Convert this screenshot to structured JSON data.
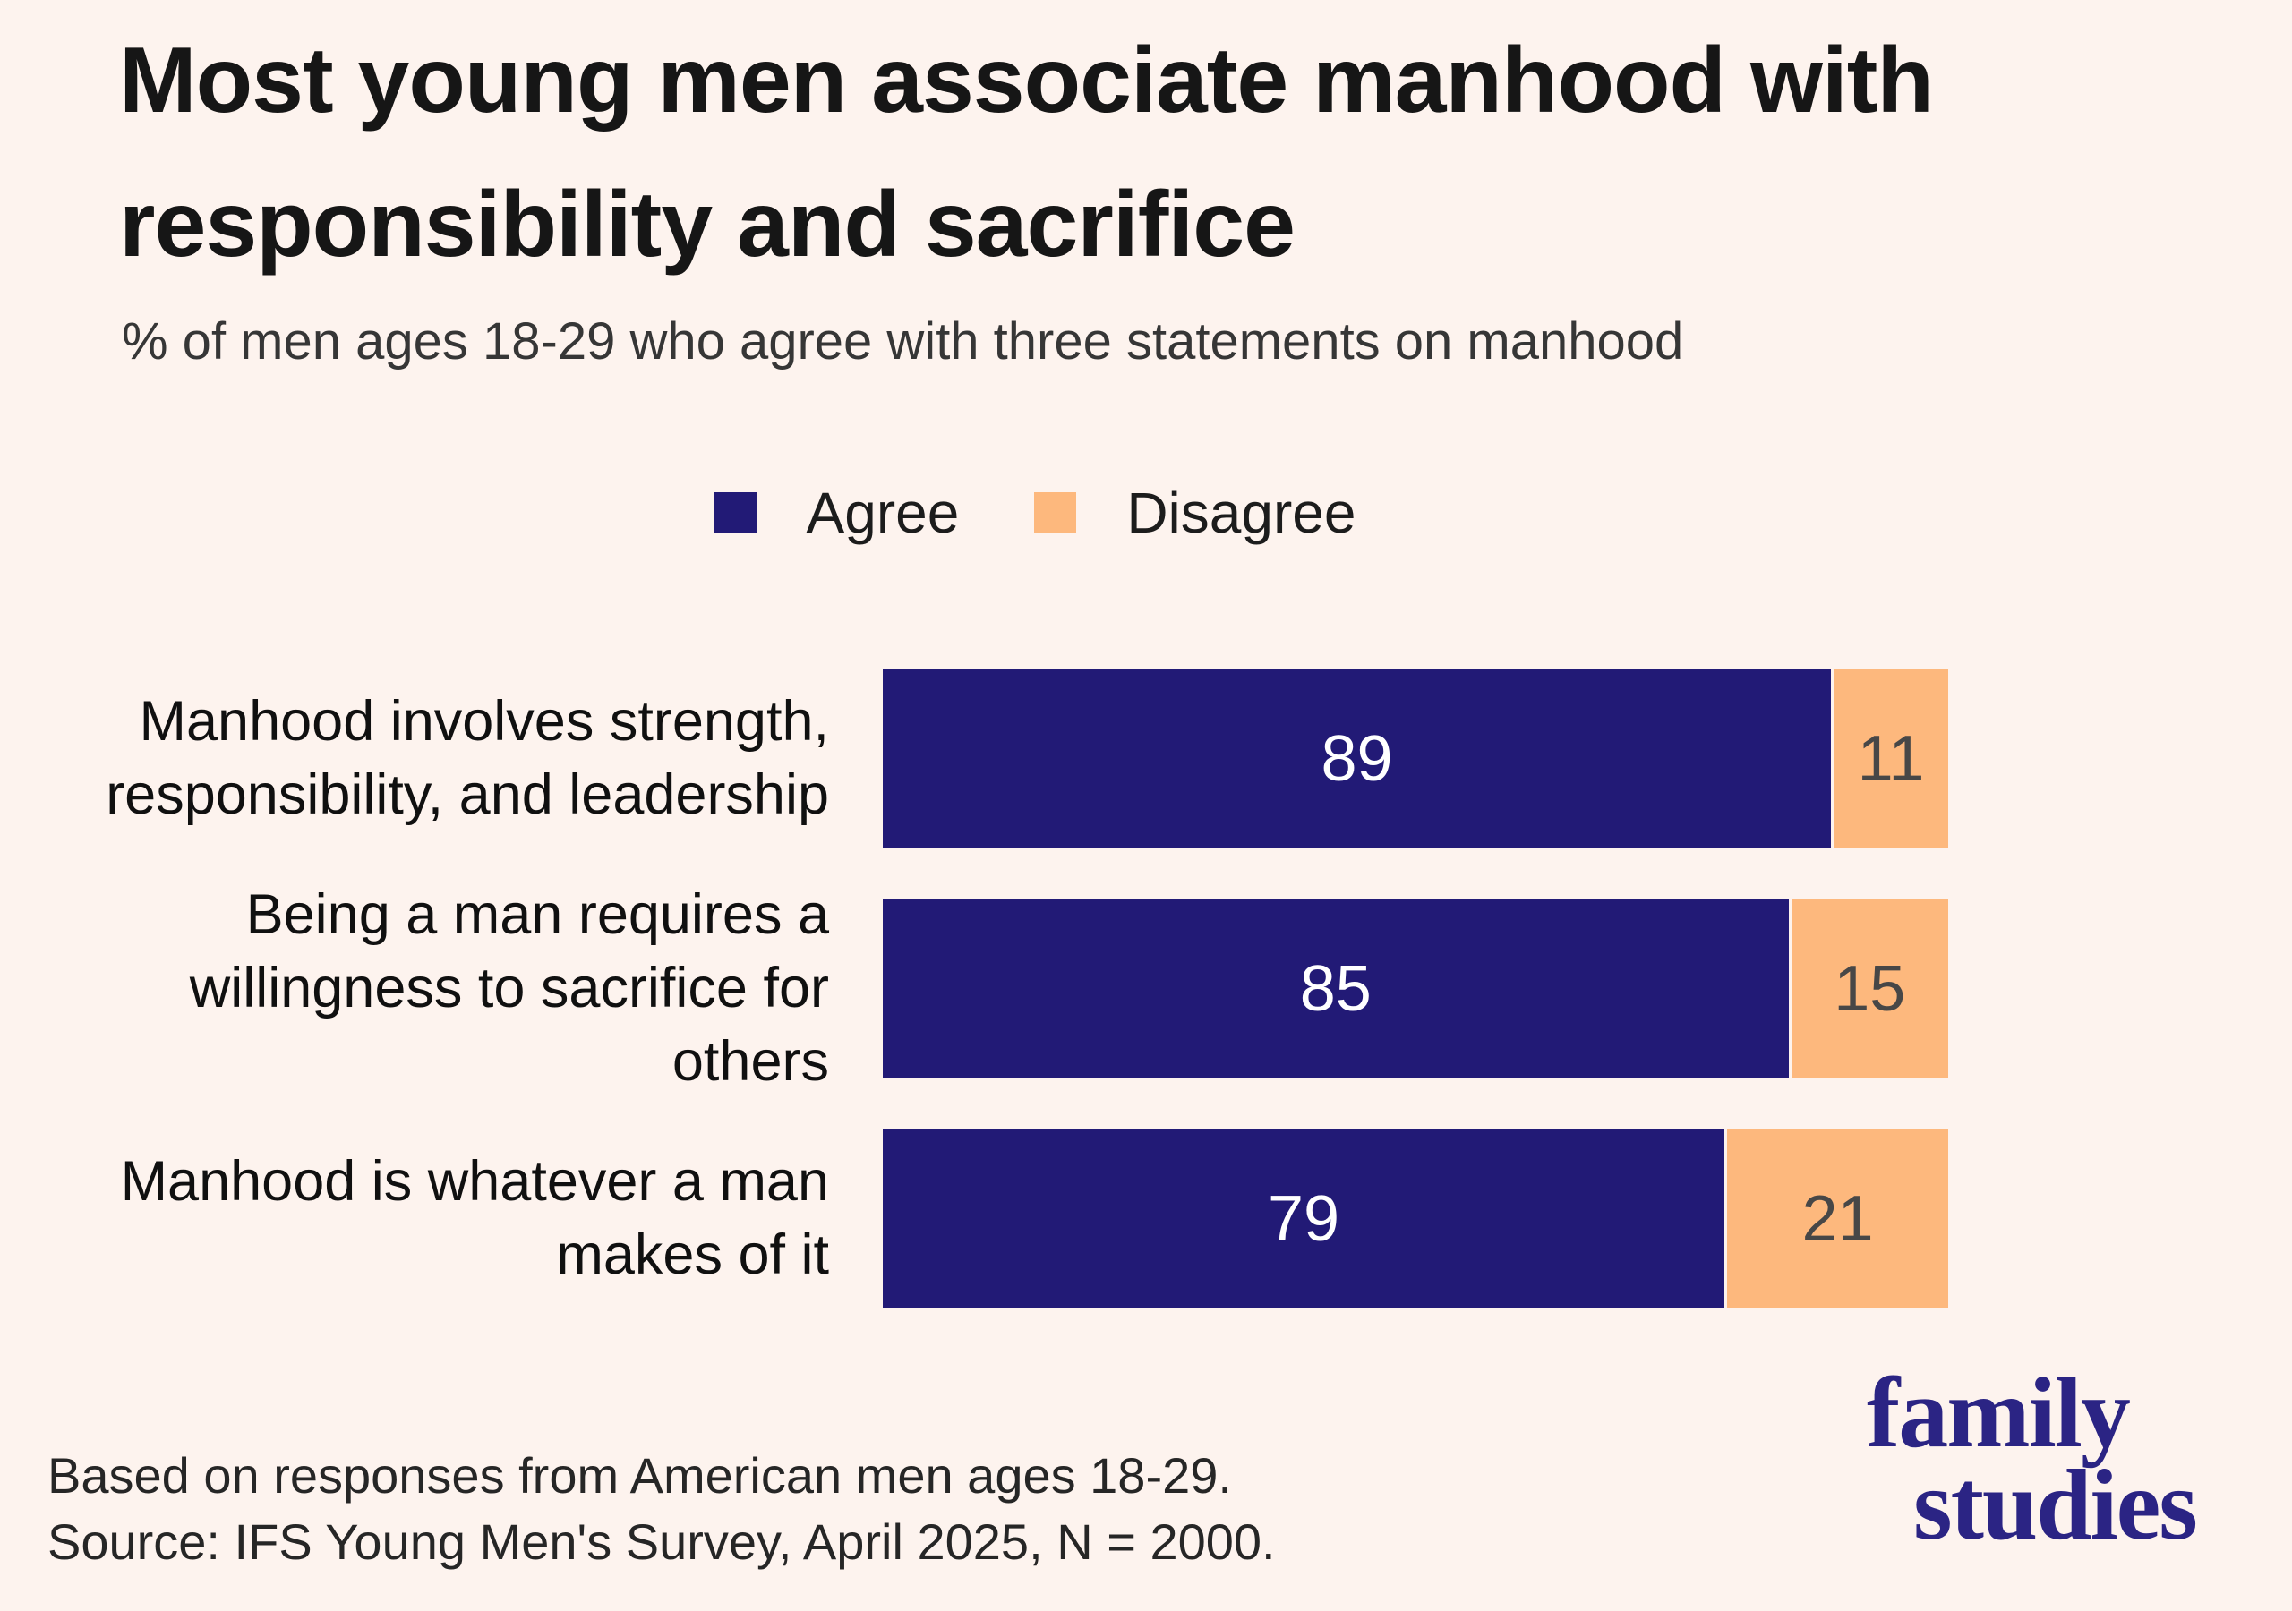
{
  "title": "Most young men associate manhood with responsibility and sacrifice",
  "subtitle": "% of men ages 18-29 who agree with three statements on manhood",
  "chart_data": {
    "type": "bar",
    "orientation": "horizontal",
    "stacked": true,
    "categories": [
      "Manhood involves strength, responsibility, and leadership",
      "Being a man requires a willingness to sacrifice for others",
      "Manhood is whatever a man makes of it"
    ],
    "series": [
      {
        "name": "Agree",
        "values": [
          89,
          85,
          79
        ],
        "color": "#221a76"
      },
      {
        "name": "Disagree",
        "values": [
          11,
          15,
          21
        ],
        "color": "#fdb87d"
      }
    ],
    "xlim": [
      0,
      100
    ],
    "value_labels": true,
    "grid": false,
    "legend_position": "top-center"
  },
  "colors": {
    "background": "#fdf3ee",
    "agree": "#221a76",
    "disagree": "#fdb87d",
    "value_on_agree": "#ffffff",
    "value_on_disagree": "#474747",
    "logo_navy": "#2b2484"
  },
  "footer": {
    "line1": "Based on responses from American men ages 18-29.",
    "line2": "Source: IFS Young Men's Survey, April 2025, N = 2000."
  },
  "logo": {
    "line1": "family",
    "line2": "studies"
  }
}
